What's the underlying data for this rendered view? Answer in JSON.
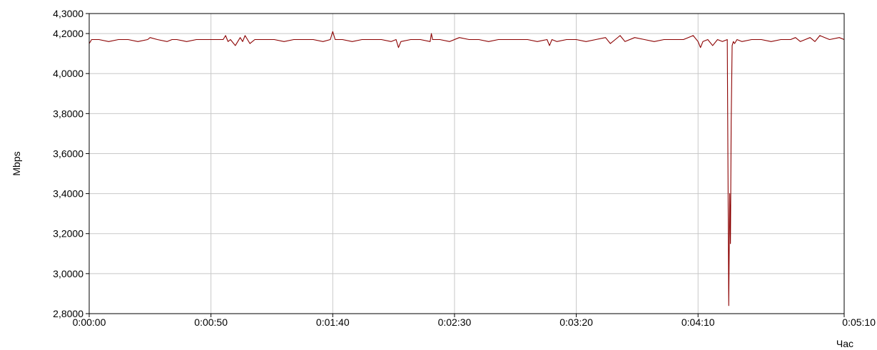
{
  "chart_data": {
    "type": "line",
    "xlabel": "Час",
    "ylabel": "Mbps",
    "xlim": [
      0,
      310
    ],
    "ylim": [
      2.8,
      4.3
    ],
    "grid": true,
    "x_ticks": [
      {
        "value": 0,
        "label": "0:00:00"
      },
      {
        "value": 50,
        "label": "0:00:50"
      },
      {
        "value": 100,
        "label": "0:01:40"
      },
      {
        "value": 150,
        "label": "0:02:30"
      },
      {
        "value": 200,
        "label": "0:03:20"
      },
      {
        "value": 250,
        "label": "0:04:10"
      },
      {
        "value": 310,
        "label": "0:05:10"
      }
    ],
    "y_ticks": [
      {
        "value": 2.8,
        "label": "2,8000"
      },
      {
        "value": 3.0,
        "label": "3,0000"
      },
      {
        "value": 3.2,
        "label": "3,2000"
      },
      {
        "value": 3.4,
        "label": "3,4000"
      },
      {
        "value": 3.6,
        "label": "3,6000"
      },
      {
        "value": 3.8,
        "label": "3,8000"
      },
      {
        "value": 4.0,
        "label": "4,0000"
      },
      {
        "value": 4.2,
        "label": "4,2000"
      },
      {
        "value": 4.3,
        "label": "4,3000"
      }
    ],
    "colors": {
      "series": "#8b0000",
      "grid": "#c8c8c8",
      "frame": "#000000"
    },
    "series": [
      {
        "x": [
          0,
          1,
          4,
          8,
          12,
          16,
          20,
          24,
          25,
          28,
          32,
          34,
          36,
          40,
          44,
          48,
          52,
          55,
          56,
          57,
          58,
          60,
          62,
          63,
          64,
          66,
          68,
          72,
          76,
          80,
          84,
          88,
          92,
          96,
          99,
          100,
          101,
          104,
          108,
          112,
          116,
          120,
          124,
          126,
          127,
          128,
          132,
          136,
          140,
          140.5,
          141,
          144,
          148,
          152,
          156,
          160,
          164,
          168,
          172,
          176,
          180,
          184,
          188,
          189,
          190,
          192,
          196,
          200,
          204,
          208,
          212,
          214,
          216,
          218,
          220,
          224,
          228,
          232,
          236,
          240,
          244,
          248,
          250,
          251,
          252,
          254,
          256,
          258,
          260,
          262,
          262.3,
          262.6,
          263,
          263.3,
          263.6,
          264,
          264.5,
          265,
          266,
          268,
          272,
          276,
          280,
          284,
          288,
          290,
          292,
          294,
          296,
          298,
          300,
          304,
          308,
          310
        ],
        "y": [
          4.15,
          4.17,
          4.17,
          4.16,
          4.17,
          4.17,
          4.16,
          4.17,
          4.18,
          4.17,
          4.16,
          4.17,
          4.17,
          4.16,
          4.17,
          4.17,
          4.17,
          4.17,
          4.19,
          4.16,
          4.17,
          4.14,
          4.18,
          4.16,
          4.19,
          4.15,
          4.17,
          4.17,
          4.17,
          4.16,
          4.17,
          4.17,
          4.17,
          4.16,
          4.17,
          4.21,
          4.17,
          4.17,
          4.16,
          4.17,
          4.17,
          4.17,
          4.16,
          4.17,
          4.13,
          4.16,
          4.17,
          4.17,
          4.16,
          4.2,
          4.17,
          4.17,
          4.16,
          4.18,
          4.17,
          4.17,
          4.16,
          4.17,
          4.17,
          4.17,
          4.17,
          4.16,
          4.17,
          4.14,
          4.17,
          4.16,
          4.17,
          4.17,
          4.16,
          4.17,
          4.18,
          4.15,
          4.17,
          4.19,
          4.16,
          4.18,
          4.17,
          4.16,
          4.17,
          4.17,
          4.17,
          4.19,
          4.16,
          4.13,
          4.16,
          4.17,
          4.14,
          4.17,
          4.16,
          4.17,
          3.5,
          2.84,
          3.4,
          3.15,
          3.75,
          4.14,
          4.16,
          4.15,
          4.17,
          4.16,
          4.17,
          4.17,
          4.16,
          4.17,
          4.17,
          4.18,
          4.16,
          4.17,
          4.18,
          4.16,
          4.19,
          4.17,
          4.18,
          4.17
        ]
      }
    ]
  }
}
